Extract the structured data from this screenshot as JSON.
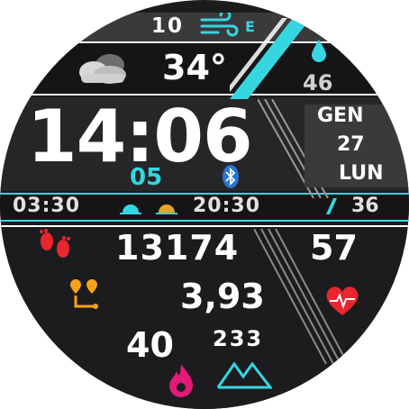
{
  "colors": {
    "accent_cyan": "#35d6e0",
    "steps_red": "#e8262e",
    "distance_orange": "#f5a21b",
    "calories_pink": "#e4197a",
    "heart_red": "#e8262e",
    "bluetooth_blue": "#2a73d6",
    "background": "#1c1c1e"
  },
  "weather": {
    "wind_speed": "10",
    "wind_direction": "E",
    "temperature": "34°",
    "humidity": "46",
    "condition_icon": "cloudy-icon",
    "wind_icon": "wind-icon",
    "humidity_icon": "water-drop-icon"
  },
  "time": {
    "clock": "14:06",
    "seconds": "05",
    "bluetooth_icon": "bluetooth-icon"
  },
  "date": {
    "month": "GEN",
    "day": "27",
    "weekday": "LUN"
  },
  "sun": {
    "sunrise": "03:30",
    "sunset": "20:30",
    "sunrise_icon": "sunrise-icon",
    "sunset_icon": "sunset-icon"
  },
  "battery": {
    "level": "36",
    "icon": "battery-icon"
  },
  "activity": {
    "steps": "13174",
    "steps_icon": "footprints-icon",
    "distance": "3,93",
    "distance_icon": "route-icon",
    "heart_rate": "57",
    "heart_icon": "heart-pulse-icon",
    "calories": "40",
    "calories_icon": "flame-icon",
    "floors": "233",
    "floors_icon": "mountains-icon"
  }
}
